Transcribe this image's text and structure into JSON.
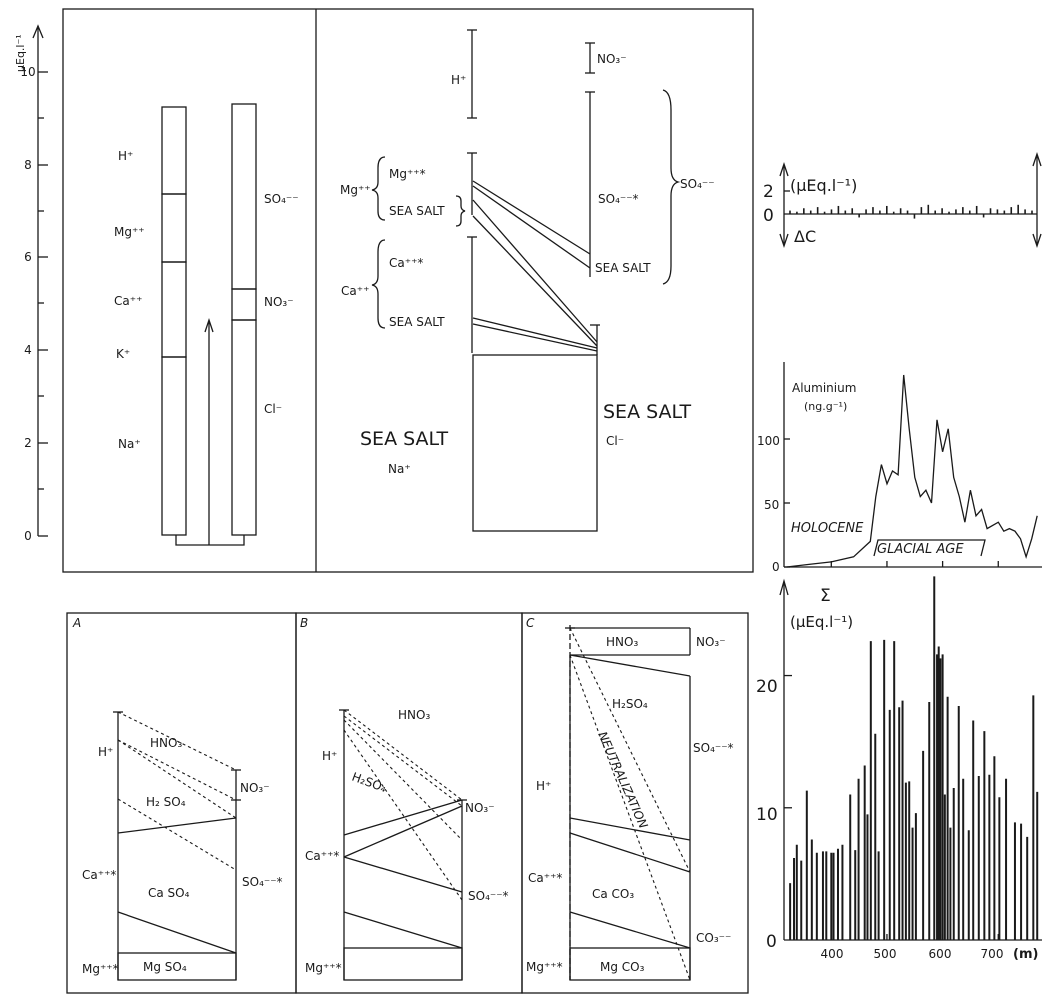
{
  "ion_balance": {
    "axis_unit": "μEq.l⁻¹",
    "ticks": [
      "0",
      "2",
      "4",
      "6",
      "8",
      "10"
    ],
    "cations": [
      "H⁺",
      "Mg⁺⁺",
      "Ca⁺⁺",
      "K⁺",
      "Na⁺"
    ],
    "anions": [
      "SO₄⁻⁻",
      "NO₃⁻",
      "Cl⁻"
    ],
    "sea_salt_panel": {
      "h": "H⁺",
      "mg": "Mg⁺⁺",
      "mg_star": "Mg⁺⁺*",
      "ca": "Ca⁺⁺",
      "ca_star": "Ca⁺⁺*",
      "sea_salt": "SEA SALT",
      "sea_salt_big": "SEA SALT",
      "na": "Na⁺",
      "cl": "Cl⁻",
      "no3": "NO₃⁻",
      "so4_star": "SO₄⁻⁻*",
      "so4": "SO₄⁻⁻"
    }
  },
  "delta_c": {
    "tick2": "2",
    "tick0": "0",
    "unit": "(μEq.l⁻¹)",
    "label": "ΔC"
  },
  "aluminium": {
    "title": "Aluminium",
    "unit": "(ng.g⁻¹)",
    "y_ticks": [
      "100",
      "50",
      "0"
    ],
    "holocene": "HOLOCENE",
    "glacial": "GLACIAL AGE"
  },
  "sigma": {
    "symbol": "Σ",
    "unit": "(μEq.l⁻¹)",
    "y_ticks": [
      "20",
      "10",
      "0"
    ],
    "x_ticks": [
      "400",
      "500",
      "600",
      "700"
    ],
    "x_unit": "(m)"
  },
  "panels": {
    "a": {
      "letter": "A",
      "h": "H⁺",
      "hno3": "HNO₃",
      "no3": "NO₃⁻",
      "h2so4": "H₂ SO₄",
      "ca": "Ca⁺⁺*",
      "caso4": "Ca  SO₄",
      "so4": "SO₄⁻⁻*",
      "mg": "Mg⁺⁺*",
      "mgso4": "Mg SO₄"
    },
    "b": {
      "letter": "B",
      "h": "H⁺",
      "hno3": "HNO₃",
      "no3": "NO₃⁻",
      "h2so4": "H₂SO₄",
      "ca": "Ca⁺⁺*",
      "so4": "SO₄⁻⁻*",
      "mg": "Mg⁺⁺*"
    },
    "c": {
      "letter": "C",
      "hno3": "HNO₃",
      "no3": "NO₃⁻",
      "h2so4": "H₂SO₄",
      "h": "H⁺",
      "neutralization": "NEUTRALIZATION",
      "so4": "SO₄⁻⁻*",
      "ca": "Ca⁺⁺*",
      "caco3": "Ca CO₃",
      "co3": "CO₃⁻⁻",
      "mg": "Mg⁺⁺*",
      "mgco3": "Mg CO₃"
    }
  },
  "chart_data": [
    {
      "type": "line",
      "title": "Aluminium",
      "ylabel": "(ng.g⁻¹)",
      "ylim": [
        0,
        150
      ],
      "x": [
        320,
        360,
        400,
        440,
        470,
        480,
        490,
        500,
        510,
        520,
        530,
        540,
        550,
        560,
        570,
        580,
        590,
        600,
        610,
        620,
        630,
        640,
        650,
        660,
        670,
        680,
        700,
        710,
        720,
        730,
        740,
        750,
        760,
        770
      ],
      "values": [
        0,
        2,
        4,
        8,
        20,
        55,
        80,
        65,
        75,
        72,
        150,
        108,
        70,
        55,
        60,
        50,
        115,
        90,
        108,
        70,
        55,
        35,
        60,
        40,
        45,
        30,
        35,
        28,
        30,
        28,
        22,
        8,
        22,
        40
      ]
    },
    {
      "type": "bar",
      "title": "Σ",
      "ylabel": "(μEq.l⁻¹)",
      "xlabel": "(m)",
      "ylim": [
        0,
        27
      ],
      "xlim": [
        315,
        775
      ],
      "x": [
        326,
        333,
        338,
        346,
        356,
        365,
        374,
        385,
        391,
        400,
        404,
        412,
        420,
        434,
        443,
        449,
        460,
        465,
        471,
        479,
        485,
        495,
        505,
        513,
        522,
        528,
        534,
        540,
        546,
        552,
        565,
        576,
        585,
        590,
        593,
        596,
        600,
        604,
        609,
        614,
        620,
        629,
        637,
        647,
        655,
        665,
        675,
        684,
        693,
        702,
        714,
        730,
        741,
        752,
        763,
        770
      ],
      "values": [
        4.3,
        6.2,
        7.2,
        6,
        11.3,
        7.6,
        6.6,
        6.7,
        6.7,
        6.6,
        6.6,
        6.9,
        7.2,
        11,
        6.8,
        12.2,
        13.2,
        9.5,
        22.6,
        15.6,
        6.7,
        22.7,
        17.4,
        22.6,
        17.6,
        18.1,
        11.9,
        12,
        8.5,
        9.6,
        14.3,
        18,
        27.5,
        21.6,
        22.2,
        21.3,
        21.6,
        11,
        18.4,
        8.5,
        11.5,
        17.7,
        12.2,
        8.3,
        16.6,
        12.4,
        15.8,
        12.5,
        13.9,
        10.8,
        12.2,
        8.9,
        8.8,
        7.8,
        18.5,
        11.2
      ]
    },
    {
      "type": "bar",
      "title": "ΔC",
      "ylabel": "(μEq.l⁻¹)",
      "ylim": [
        -1,
        3
      ],
      "values": [
        0.3,
        0.2,
        0.5,
        0.3,
        0.6,
        0.2,
        0.4,
        0.7,
        0.3,
        0.5,
        -0.3,
        0.4,
        0.6,
        0.3,
        0.7,
        0.2,
        0.5,
        0.3,
        -0.4,
        0.6,
        0.8,
        0.3,
        0.5,
        0.2,
        0.4,
        0.6,
        0.3,
        0.7,
        -0.3,
        0.5,
        0.4,
        0.3,
        0.6,
        0.8,
        0.4,
        0.3
      ]
    }
  ]
}
